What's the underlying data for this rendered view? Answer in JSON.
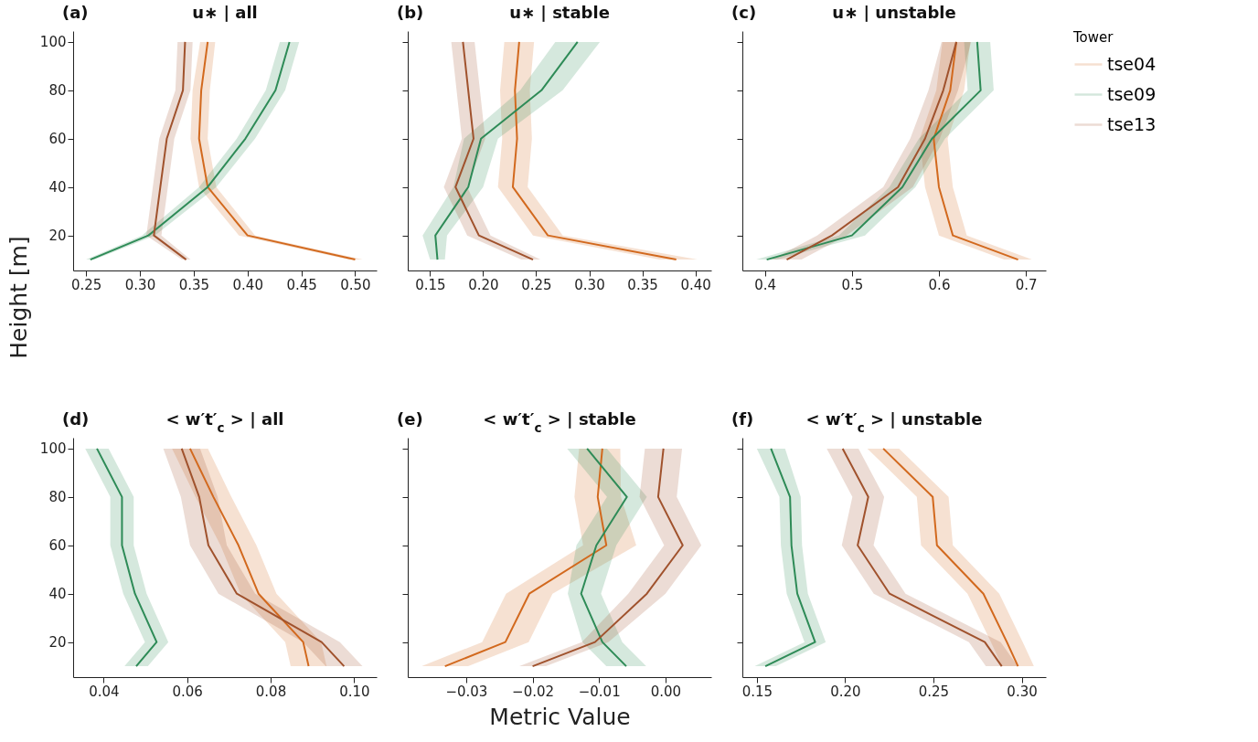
{
  "chart_data": [
    {
      "type": "line",
      "orientation": "horizontal",
      "title": "u∗ | all",
      "annotations": [
        "(a)"
      ],
      "ylabel": "Height [m]",
      "xlim": [
        0.238,
        0.52
      ],
      "xticks": [
        0.25,
        {
          "value": 0.3,
          "label": "0.30"
        },
        0.35,
        {
          "value": 0.4,
          "label": "0.40"
        },
        0.45,
        {
          "value": 0.5,
          "label": "0.50"
        }
      ],
      "ylim": [
        5.5,
        104.5
      ],
      "yticks": [
        20,
        40,
        60,
        80,
        100
      ],
      "series": [
        {
          "color": "#d2691e",
          "x": [
            10,
            20,
            40,
            60,
            80,
            100
          ],
          "values": [
            0.5,
            0.4,
            0.363,
            0.355,
            0.357,
            0.363
          ],
          "lower": [
            0.494,
            0.392,
            0.355,
            0.347,
            0.349,
            0.356
          ],
          "upper": [
            0.507,
            0.407,
            0.371,
            0.363,
            0.365,
            0.37
          ]
        },
        {
          "color": "#2e8b57",
          "x": [
            10,
            20,
            40,
            60,
            80,
            100
          ],
          "values": [
            0.254,
            0.308,
            0.363,
            0.398,
            0.426,
            0.439
          ],
          "lower": [
            0.25,
            0.302,
            0.355,
            0.39,
            0.417,
            0.43
          ],
          "upper": [
            0.258,
            0.314,
            0.371,
            0.407,
            0.435,
            0.448
          ]
        },
        {
          "color": "#a0522d",
          "x": [
            10,
            20,
            40,
            60,
            80,
            100
          ],
          "values": [
            0.343,
            0.313,
            0.319,
            0.325,
            0.34,
            0.342
          ],
          "lower": [
            0.339,
            0.306,
            0.312,
            0.318,
            0.333,
            0.335
          ],
          "upper": [
            0.347,
            0.32,
            0.326,
            0.332,
            0.347,
            0.349
          ]
        }
      ]
    },
    {
      "type": "line",
      "orientation": "horizontal",
      "title": "u∗ | stable",
      "annotations": [
        "(b)"
      ],
      "xlim": [
        0.129,
        0.415
      ],
      "xticks": [
        0.15,
        {
          "value": 0.2,
          "label": "0.20"
        },
        0.25,
        {
          "value": 0.3,
          "label": "0.30"
        },
        0.35,
        {
          "value": 0.4,
          "label": "0.40"
        }
      ],
      "ylim": [
        5.5,
        104.5
      ],
      "yticks": [
        20,
        40,
        60,
        80,
        100
      ],
      "tick_labels": "x",
      "series": [
        {
          "color": "#d2691e",
          "x": [
            10,
            20,
            40,
            60,
            80,
            100
          ],
          "values": [
            0.382,
            0.261,
            0.228,
            0.232,
            0.23,
            0.234
          ],
          "lower": [
            0.366,
            0.247,
            0.214,
            0.218,
            0.216,
            0.22
          ],
          "upper": [
            0.402,
            0.275,
            0.242,
            0.246,
            0.244,
            0.248
          ]
        },
        {
          "color": "#2e8b57",
          "x": [
            10,
            20,
            40,
            60,
            80,
            100
          ],
          "values": [
            0.157,
            0.155,
            0.186,
            0.198,
            0.255,
            0.289
          ],
          "lower": [
            0.15,
            0.143,
            0.172,
            0.182,
            0.235,
            0.268
          ],
          "upper": [
            0.164,
            0.166,
            0.2,
            0.214,
            0.275,
            0.31
          ]
        },
        {
          "color": "#a0522d",
          "x": [
            10,
            20,
            40,
            60,
            80,
            100
          ],
          "values": [
            0.247,
            0.196,
            0.174,
            0.191,
            0.186,
            0.181
          ],
          "lower": [
            0.236,
            0.185,
            0.163,
            0.18,
            0.175,
            0.17
          ],
          "upper": [
            0.254,
            0.207,
            0.185,
            0.202,
            0.197,
            0.192
          ]
        }
      ]
    },
    {
      "type": "line",
      "orientation": "horizontal",
      "title": "u∗ | unstable",
      "annotations": [
        "(c)"
      ],
      "legend": "top right",
      "legend_title": "Tower",
      "xlim": [
        0.374,
        0.723
      ],
      "xticks": [
        0.4,
        0.5,
        0.6,
        0.7
      ],
      "ylim": [
        5.5,
        104.5
      ],
      "yticks": [
        20,
        40,
        60,
        80,
        100
      ],
      "tick_labels": "x",
      "series": [
        {
          "name": "tse04",
          "color": "#d2691e",
          "x": [
            10,
            20,
            40,
            60,
            80,
            100
          ],
          "values": [
            0.691,
            0.616,
            0.6,
            0.594,
            0.613,
            0.62
          ],
          "lower": [
            0.675,
            0.6,
            0.584,
            0.578,
            0.597,
            0.604
          ],
          "upper": [
            0.707,
            0.632,
            0.616,
            0.61,
            0.629,
            0.636
          ]
        },
        {
          "name": "tse09",
          "color": "#2e8b57",
          "x": [
            10,
            20,
            40,
            60,
            80,
            100
          ],
          "values": [
            0.402,
            0.5,
            0.558,
            0.592,
            0.648,
            0.644
          ],
          "lower": [
            0.39,
            0.485,
            0.543,
            0.577,
            0.633,
            0.629
          ],
          "upper": [
            0.414,
            0.515,
            0.573,
            0.607,
            0.663,
            0.659
          ]
        },
        {
          "name": "tse13",
          "color": "#a0522d",
          "x": [
            10,
            20,
            40,
            60,
            80,
            100
          ],
          "values": [
            0.425,
            0.477,
            0.553,
            0.584,
            0.605,
            0.62
          ],
          "lower": [
            0.408,
            0.46,
            0.536,
            0.567,
            0.588,
            0.603
          ],
          "upper": [
            0.442,
            0.494,
            0.57,
            0.601,
            0.622,
            0.637
          ]
        }
      ]
    },
    {
      "type": "line",
      "orientation": "horizontal",
      "title": "< w′t′$_{c}$ >  | all",
      "annotations": [
        "(d)"
      ],
      "xlim": [
        0.0327,
        0.1054
      ],
      "xticks": [
        0.04,
        0.06,
        0.08,
        {
          "value": 0.1,
          "label": "0.10"
        }
      ],
      "ylim": [
        5.5,
        104.5
      ],
      "yticks": [
        20,
        40,
        60,
        80,
        100
      ],
      "series": [
        {
          "color": "#d2691e",
          "x": [
            10,
            20,
            40,
            60,
            80,
            100
          ],
          "values": [
            0.0891,
            0.0878,
            0.0771,
            0.0723,
            0.0663,
            0.0607
          ],
          "lower": [
            0.0848,
            0.0835,
            0.0728,
            0.068,
            0.062,
            0.0564
          ],
          "upper": [
            0.0934,
            0.0921,
            0.0814,
            0.0766,
            0.0706,
            0.065
          ]
        },
        {
          "color": "#2e8b57",
          "x": [
            10,
            20,
            40,
            60,
            80,
            100
          ],
          "values": [
            0.0478,
            0.0527,
            0.0475,
            0.0444,
            0.0444,
            0.0384
          ],
          "lower": [
            0.045,
            0.0499,
            0.0447,
            0.0416,
            0.0416,
            0.0356
          ],
          "upper": [
            0.0506,
            0.0555,
            0.0503,
            0.0472,
            0.0472,
            0.0412
          ]
        },
        {
          "color": "#a0522d",
          "x": [
            10,
            20,
            40,
            60,
            80,
            100
          ],
          "values": [
            0.0976,
            0.0922,
            0.0719,
            0.0651,
            0.0629,
            0.0587
          ],
          "lower": [
            0.0932,
            0.0878,
            0.0675,
            0.0607,
            0.0585,
            0.0543
          ],
          "upper": [
            0.102,
            0.0966,
            0.0763,
            0.0695,
            0.0673,
            0.0631
          ]
        }
      ]
    },
    {
      "type": "line",
      "orientation": "horizontal",
      "title": "< w′t′$_{c}$ >  | stable",
      "annotations": [
        "(e)"
      ],
      "xlabel": "Metric Value",
      "xlim": [
        -0.0388,
        0.0069
      ],
      "xticks": [
        {
          "value": -0.03,
          "label": "−0.03"
        },
        {
          "value": -0.02,
          "label": "−0.02"
        },
        {
          "value": -0.01,
          "label": "−0.01"
        },
        {
          "value": 0,
          "label": "0.00"
        }
      ],
      "ylim": [
        5.5,
        104.5
      ],
      "yticks": [
        20,
        40,
        60,
        80,
        100
      ],
      "tick_labels": "x",
      "series": [
        {
          "color": "#d2691e",
          "x": [
            10,
            20,
            40,
            60,
            80,
            100
          ],
          "values": [
            -0.0332,
            -0.0241,
            -0.0205,
            -0.0089,
            -0.0102,
            -0.0095
          ],
          "lower": [
            -0.0367,
            -0.0276,
            -0.024,
            -0.0124,
            -0.0137,
            -0.013
          ],
          "upper": [
            -0.0297,
            -0.0206,
            -0.017,
            -0.0044,
            -0.0067,
            -0.0068
          ]
        },
        {
          "color": "#2e8b57",
          "x": [
            10,
            20,
            40,
            60,
            80,
            100
          ],
          "values": [
            -0.0059,
            -0.0095,
            -0.0127,
            -0.0104,
            -0.0058,
            -0.0118
          ],
          "lower": [
            -0.0089,
            -0.0125,
            -0.0147,
            -0.0134,
            -0.0088,
            -0.0148
          ],
          "upper": [
            -0.0029,
            -0.0065,
            -0.0097,
            -0.0074,
            -0.0028,
            -0.0088
          ]
        },
        {
          "color": "#a0522d",
          "x": [
            10,
            20,
            40,
            60,
            80,
            100
          ],
          "values": [
            -0.02,
            -0.0106,
            -0.0028,
            0.0026,
            -0.0011,
            -0.0003
          ],
          "lower": [
            -0.022,
            -0.0126,
            -0.0056,
            -0.0002,
            -0.0039,
            -0.0031
          ],
          "upper": [
            -0.018,
            -0.0086,
            0.0,
            0.0054,
            0.0017,
            0.0025
          ]
        }
      ]
    },
    {
      "type": "line",
      "orientation": "horizontal",
      "title": "< w′t′$_{c}$ >  | unstable",
      "annotations": [
        "(f)"
      ],
      "xlim": [
        0.1418,
        0.3137
      ],
      "xticks": [
        0.15,
        {
          "value": 0.2,
          "label": "0.20"
        },
        0.25,
        {
          "value": 0.3,
          "label": "0.30"
        }
      ],
      "ylim": [
        5.5,
        104.5
      ],
      "yticks": [
        20,
        40,
        60,
        80,
        100
      ],
      "tick_labels": "x",
      "series": [
        {
          "color": "#d2691e",
          "x": [
            10,
            20,
            40,
            60,
            80,
            100
          ],
          "values": [
            0.2979,
            0.2916,
            0.2783,
            0.252,
            0.2496,
            0.2216
          ],
          "lower": [
            0.2889,
            0.2826,
            0.2693,
            0.243,
            0.2406,
            0.2126
          ],
          "upper": [
            0.3069,
            0.3006,
            0.2873,
            0.261,
            0.2586,
            0.2306
          ]
        },
        {
          "color": "#2e8b57",
          "x": [
            10,
            20,
            40,
            60,
            80,
            100
          ],
          "values": [
            0.1548,
            0.183,
            0.1729,
            0.1696,
            0.1688,
            0.158
          ],
          "lower": [
            0.1488,
            0.177,
            0.1669,
            0.1636,
            0.1628,
            0.15
          ],
          "upper": [
            0.1608,
            0.189,
            0.1789,
            0.1756,
            0.1748,
            0.166
          ]
        },
        {
          "color": "#a0522d",
          "x": [
            10,
            20,
            40,
            60,
            80,
            100
          ],
          "values": [
            0.2887,
            0.2791,
            0.2252,
            0.2071,
            0.2131,
            0.1986
          ],
          "lower": [
            0.2797,
            0.2701,
            0.2162,
            0.1981,
            0.2041,
            0.1896
          ],
          "upper": [
            0.2977,
            0.2881,
            0.2342,
            0.2161,
            0.2221,
            0.2076
          ]
        }
      ]
    }
  ]
}
